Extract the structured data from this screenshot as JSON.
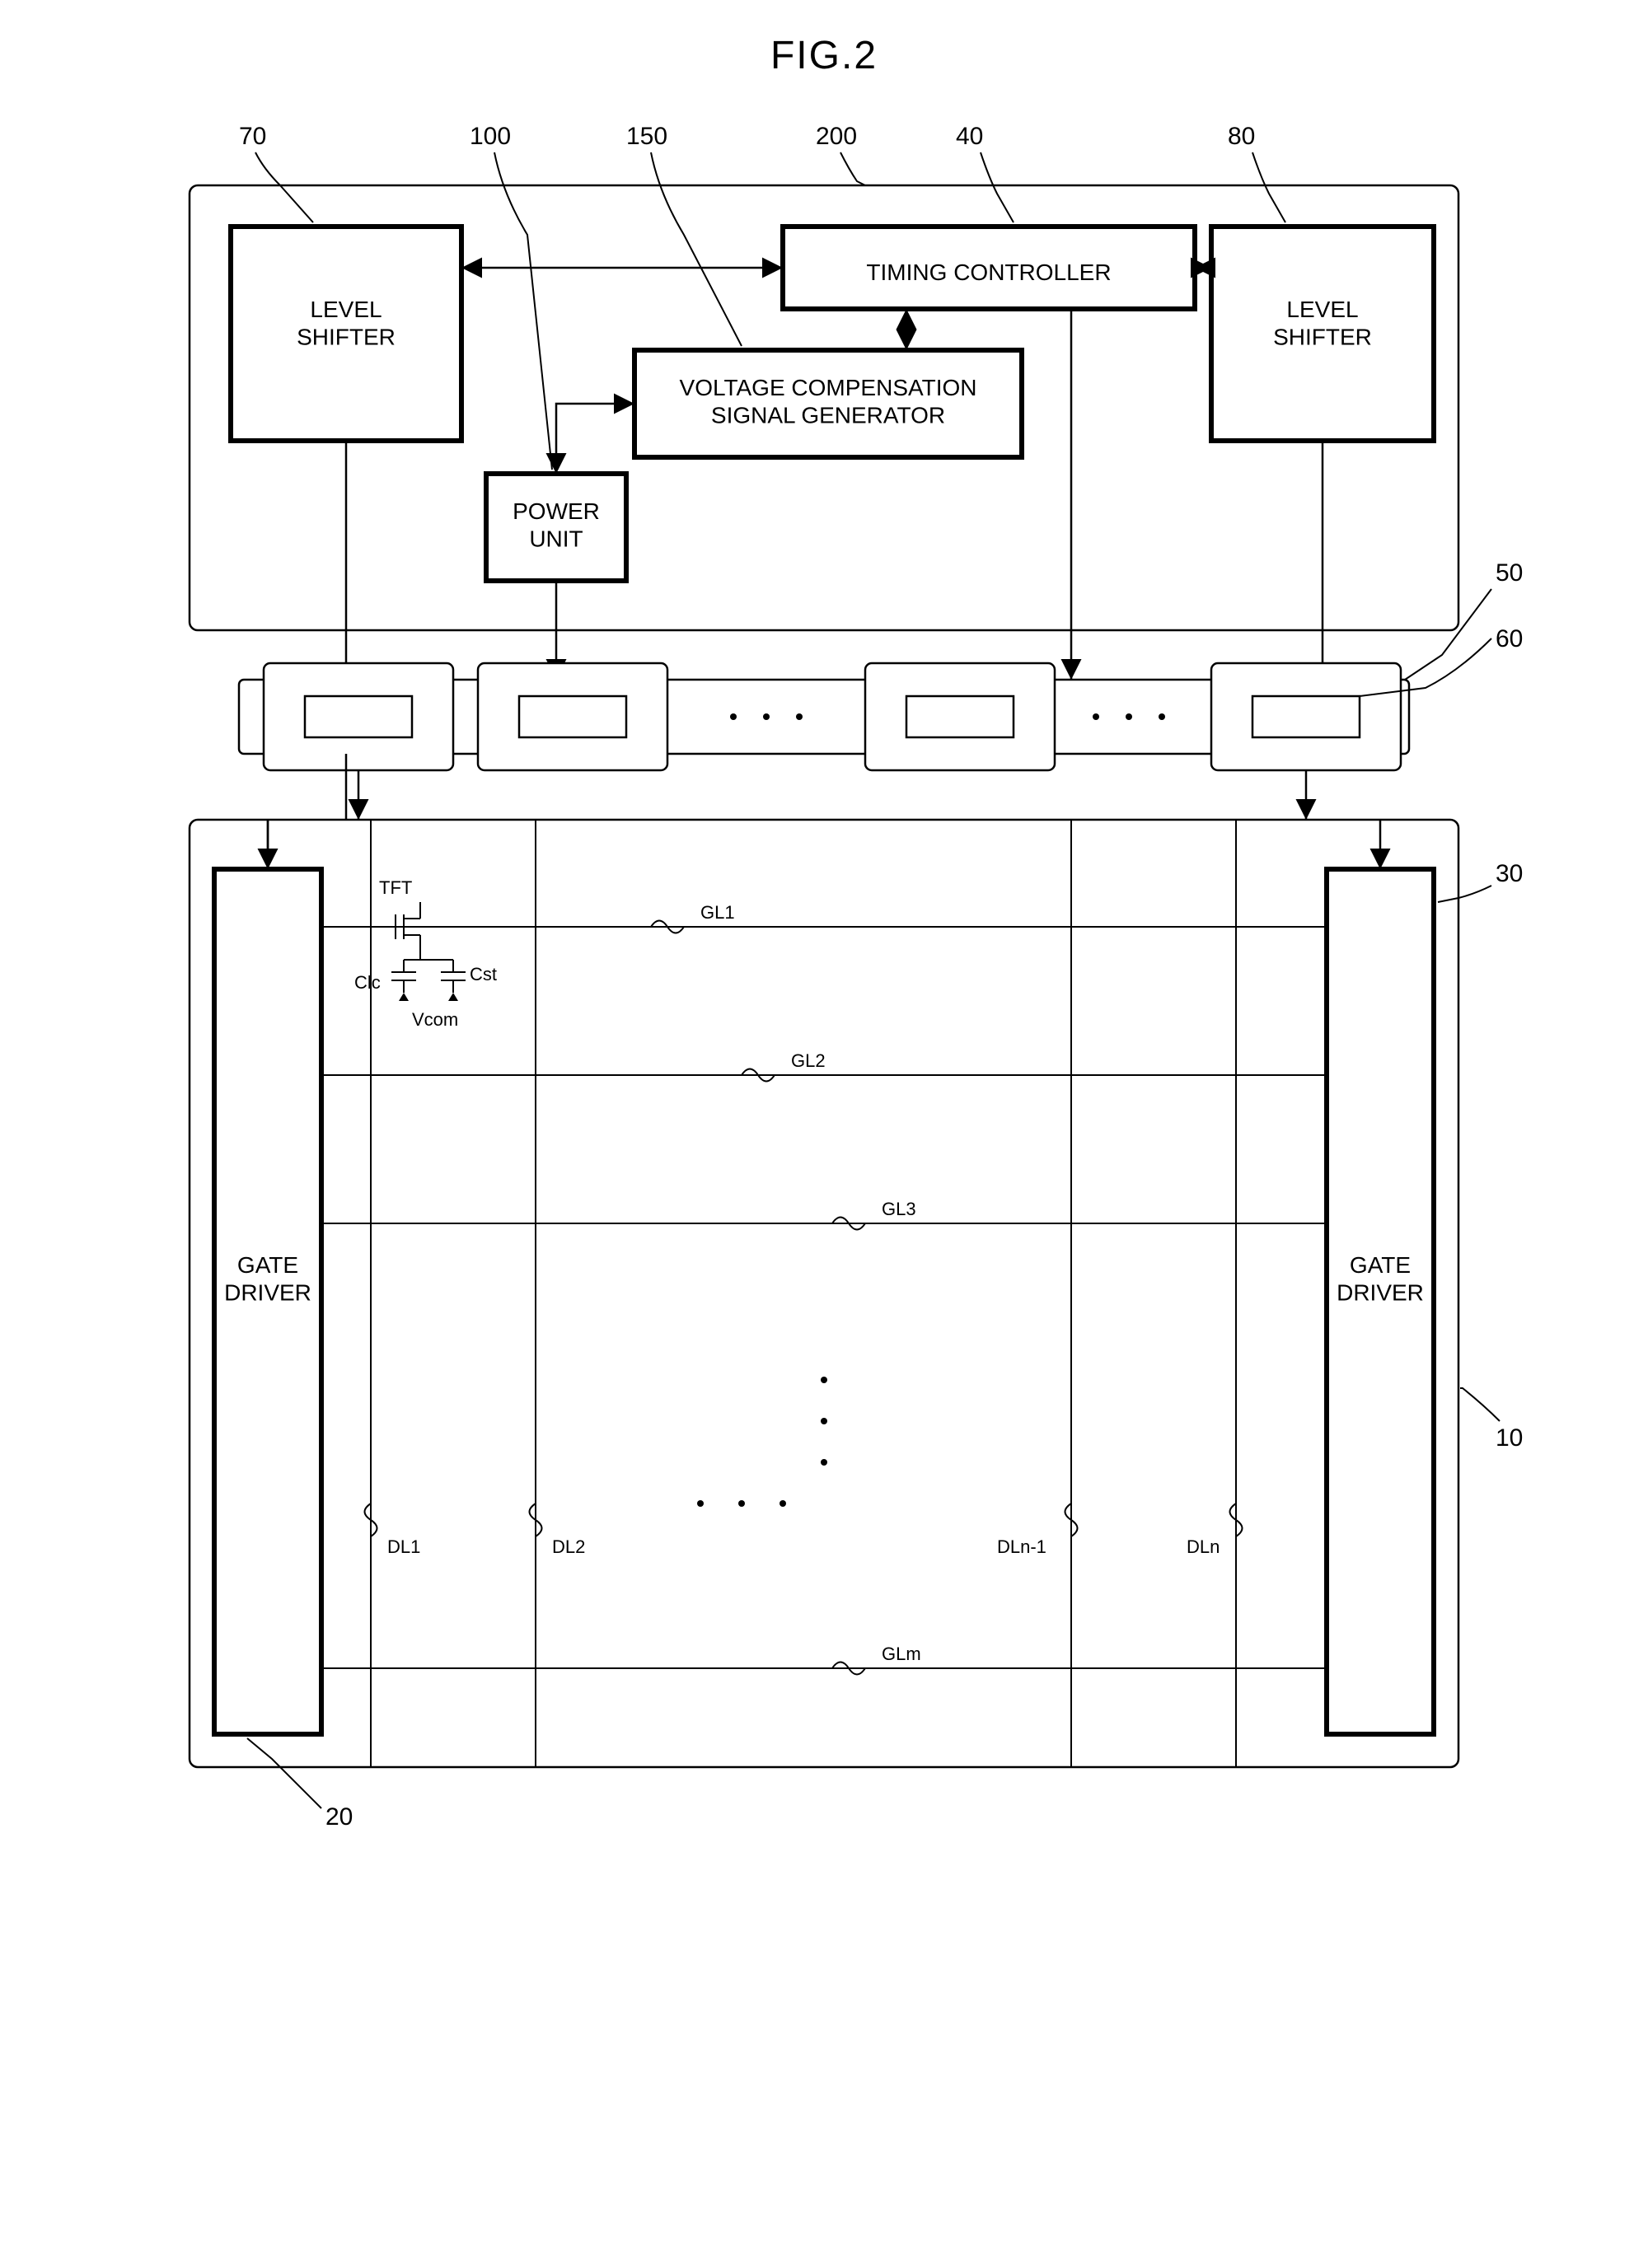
{
  "figure_title": "FIG.2",
  "blocks": {
    "level_shifter_left": "LEVEL\nSHIFTER",
    "level_shifter_right": "LEVEL\nSHIFTER",
    "timing_controller": "TIMING  CONTROLLER",
    "voltage_comp": "VOLTAGE COMPENSATION\nSIGNAL GENERATOR",
    "power_unit": "POWER\nUNIT",
    "gate_driver_left": "GATE\nDRIVER",
    "gate_driver_right": "GATE\nDRIVER"
  },
  "pixel_labels": {
    "tft": "TFT",
    "clc": "Clc",
    "cst": "Cst",
    "vcom": "Vcom"
  },
  "gate_lines": [
    "GL1",
    "GL2",
    "GL3",
    "GLm"
  ],
  "data_lines": [
    "DL1",
    "DL2",
    "DLn-1",
    "DLn"
  ],
  "ref_numbers": {
    "outer_200": "200",
    "level_shifter_left_70": "70",
    "power_100": "100",
    "voltage_150": "150",
    "timing_40": "40",
    "level_shifter_right_80": "80",
    "source_pcb_50": "50",
    "source_ic_60": "60",
    "gate_right_30": "30",
    "panel_10": "10",
    "gate_left_20": "20"
  },
  "colors": {
    "stroke": "#000000",
    "bg": "#ffffff"
  }
}
